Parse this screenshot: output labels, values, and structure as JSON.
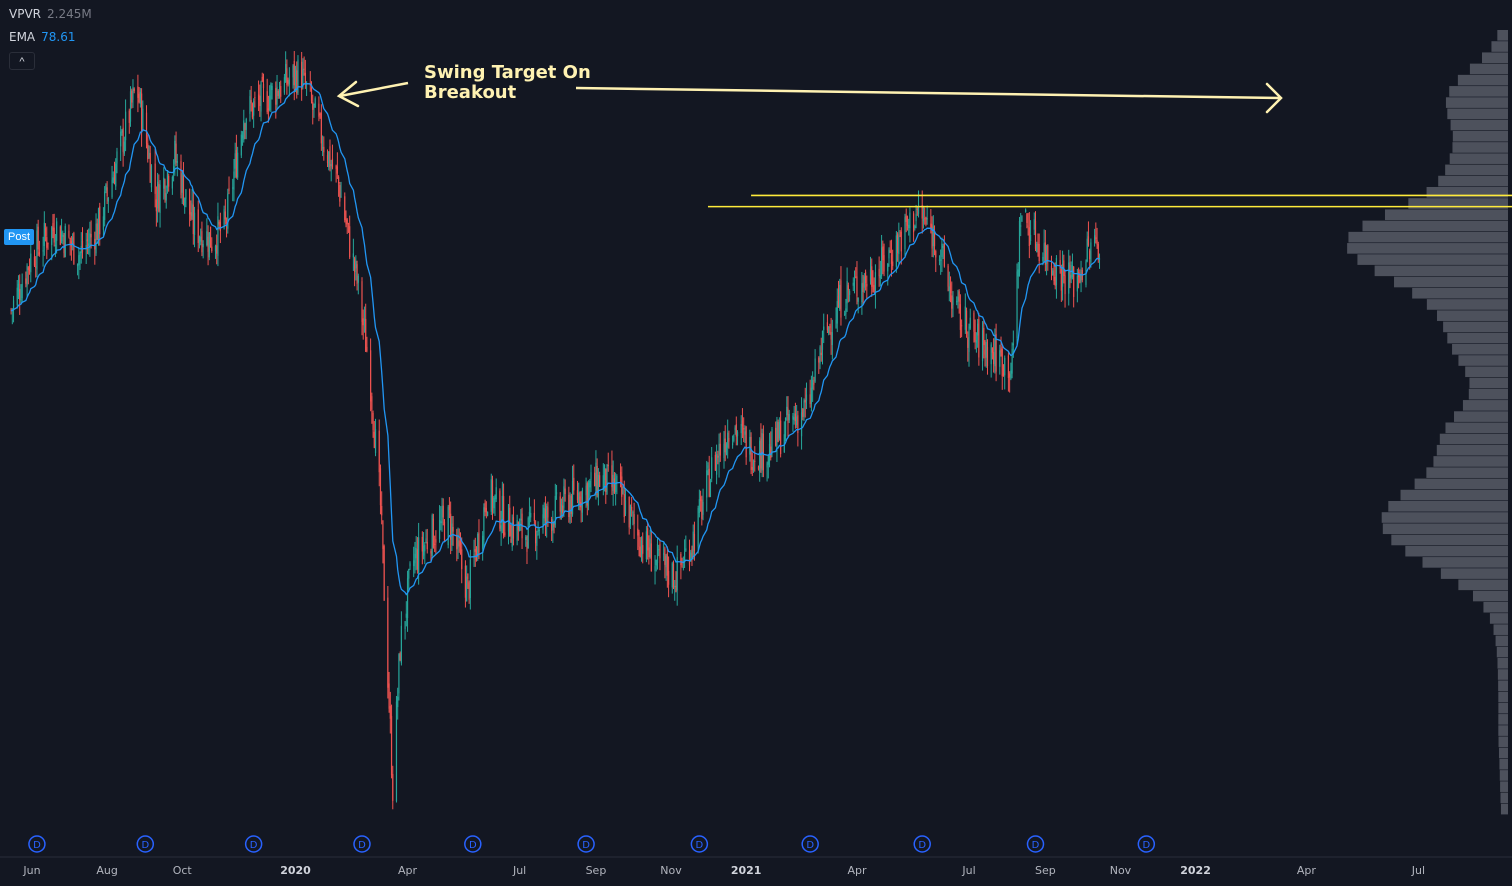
{
  "legend": {
    "vpvr": {
      "name": "VPVR",
      "value": "2.245M"
    },
    "ema": {
      "name": "EMA",
      "value": "78.61"
    }
  },
  "post_label": "Post",
  "collapse_button_symbol": "^",
  "annotation": {
    "line1": "Swing Target On",
    "line2": "Breakout"
  },
  "dividend_marker_label": "D",
  "colors": {
    "background": "#131722",
    "candle_up": "#26a69a",
    "candle_down": "#ef5350",
    "ema": "#2196f3",
    "resistance": "#ffeb3b",
    "annotation": "#fff2b2",
    "volume_profile": "#5d606b",
    "dividend_marker": "#2962ff"
  },
  "chart_data": {
    "type": "candlestick",
    "ticker_indicators": [
      "VPVR",
      "EMA"
    ],
    "x_axis_labels": [
      {
        "label": "Jun",
        "date": "2019-06-01"
      },
      {
        "label": "Aug",
        "date": "2019-08-01"
      },
      {
        "label": "Oct",
        "date": "2019-10-01"
      },
      {
        "label": "2020",
        "date": "2020-01-01",
        "bold": true
      },
      {
        "label": "Apr",
        "date": "2020-04-01"
      },
      {
        "label": "Jul",
        "date": "2020-07-01"
      },
      {
        "label": "Sep",
        "date": "2020-09-01"
      },
      {
        "label": "Nov",
        "date": "2020-11-01"
      },
      {
        "label": "2021",
        "date": "2021-01-01",
        "bold": true
      },
      {
        "label": "Apr",
        "date": "2021-04-01"
      },
      {
        "label": "Jul",
        "date": "2021-07-01"
      },
      {
        "label": "Sep",
        "date": "2021-09-01"
      },
      {
        "label": "Nov",
        "date": "2021-11-01"
      },
      {
        "label": "2022",
        "date": "2022-01-01",
        "bold": true
      },
      {
        "label": "Apr",
        "date": "2022-04-01"
      },
      {
        "label": "Jul",
        "date": "2022-07-01"
      }
    ],
    "price_path": [
      [
        "2019-05-15",
        78
      ],
      [
        "2019-06-01",
        82
      ],
      [
        "2019-06-20",
        84
      ],
      [
        "2019-07-10",
        82
      ],
      [
        "2019-07-25",
        84
      ],
      [
        "2019-08-10",
        89
      ],
      [
        "2019-08-25",
        94
      ],
      [
        "2019-09-10",
        86
      ],
      [
        "2019-09-25",
        89
      ],
      [
        "2019-10-10",
        84
      ],
      [
        "2019-10-25",
        83
      ],
      [
        "2019-11-05",
        84
      ],
      [
        "2019-11-20",
        92
      ],
      [
        "2019-12-05",
        93
      ],
      [
        "2019-12-20",
        94
      ],
      [
        "2020-01-05",
        95
      ],
      [
        "2020-01-20",
        91
      ],
      [
        "2020-02-05",
        87
      ],
      [
        "2020-02-20",
        80
      ],
      [
        "2020-03-01",
        74
      ],
      [
        "2020-03-10",
        64
      ],
      [
        "2020-03-20",
        44
      ],
      [
        "2020-03-26",
        54
      ],
      [
        "2020-04-05",
        60
      ],
      [
        "2020-04-20",
        62
      ],
      [
        "2020-05-05",
        63
      ],
      [
        "2020-05-20",
        58
      ],
      [
        "2020-06-05",
        65
      ],
      [
        "2020-06-20",
        63
      ],
      [
        "2020-07-05",
        62
      ],
      [
        "2020-07-20",
        63
      ],
      [
        "2020-08-05",
        64
      ],
      [
        "2020-08-20",
        65
      ],
      [
        "2020-09-05",
        66
      ],
      [
        "2020-09-20",
        65
      ],
      [
        "2020-10-05",
        62
      ],
      [
        "2020-10-20",
        60
      ],
      [
        "2020-11-05",
        59
      ],
      [
        "2020-11-20",
        62
      ],
      [
        "2020-12-05",
        67
      ],
      [
        "2020-12-20",
        70
      ],
      [
        "2021-01-05",
        68
      ],
      [
        "2021-01-20",
        68
      ],
      [
        "2021-02-05",
        70
      ],
      [
        "2021-02-20",
        71
      ],
      [
        "2021-03-05",
        76
      ],
      [
        "2021-03-20",
        79
      ],
      [
        "2021-04-05",
        80
      ],
      [
        "2021-04-20",
        81
      ],
      [
        "2021-05-05",
        83
      ],
      [
        "2021-05-20",
        85
      ],
      [
        "2021-06-05",
        83
      ],
      [
        "2021-06-20",
        78
      ],
      [
        "2021-07-05",
        76
      ],
      [
        "2021-07-20",
        75
      ],
      [
        "2021-08-05",
        74
      ],
      [
        "2021-08-12",
        85
      ],
      [
        "2021-08-25",
        83
      ],
      [
        "2021-09-10",
        81
      ],
      [
        "2021-09-25",
        80
      ],
      [
        "2021-10-05",
        82
      ],
      [
        "2021-10-15",
        83
      ]
    ],
    "resistance_lines": [
      {
        "from_date": "2020-12-01",
        "price": 85.4
      },
      {
        "from_date": "2021-01-05",
        "price": 86.2
      }
    ],
    "y_range": [
      42,
      98
    ],
    "x_range": [
      "2019-05-06",
      "2022-09-15"
    ],
    "grid": false,
    "legend_position": "top-left"
  }
}
